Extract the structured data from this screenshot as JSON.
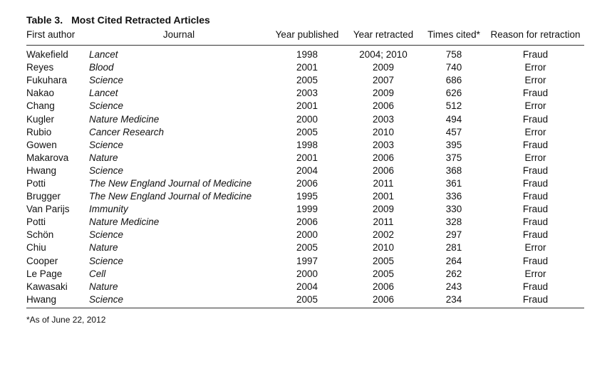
{
  "caption": {
    "label": "Table 3.",
    "title": "Most Cited Retracted Articles"
  },
  "headers": {
    "author": "First author",
    "journal": "Journal",
    "year_published": "Year published",
    "year_retracted": "Year retracted",
    "times_cited": "Times cited*",
    "reason": "Reason for retraction"
  },
  "rows": [
    {
      "author": "Wakefield",
      "journal": "Lancet",
      "year_published": "1998",
      "year_retracted": "2004; 2010",
      "times_cited": "758",
      "reason": "Fraud"
    },
    {
      "author": "Reyes",
      "journal": "Blood",
      "year_published": "2001",
      "year_retracted": "2009",
      "times_cited": "740",
      "reason": "Error"
    },
    {
      "author": "Fukuhara",
      "journal": "Science",
      "year_published": "2005",
      "year_retracted": "2007",
      "times_cited": "686",
      "reason": "Error"
    },
    {
      "author": "Nakao",
      "journal": "Lancet",
      "year_published": "2003",
      "year_retracted": "2009",
      "times_cited": "626",
      "reason": "Fraud"
    },
    {
      "author": "Chang",
      "journal": "Science",
      "year_published": "2001",
      "year_retracted": "2006",
      "times_cited": "512",
      "reason": "Error"
    },
    {
      "author": "Kugler",
      "journal": "Nature Medicine",
      "year_published": "2000",
      "year_retracted": "2003",
      "times_cited": "494",
      "reason": "Fraud"
    },
    {
      "author": "Rubio",
      "journal": "Cancer Research",
      "year_published": "2005",
      "year_retracted": "2010",
      "times_cited": "457",
      "reason": "Error"
    },
    {
      "author": "Gowen",
      "journal": "Science",
      "year_published": "1998",
      "year_retracted": "2003",
      "times_cited": "395",
      "reason": "Fraud"
    },
    {
      "author": "Makarova",
      "journal": "Nature",
      "year_published": "2001",
      "year_retracted": "2006",
      "times_cited": "375",
      "reason": "Error"
    },
    {
      "author": "Hwang",
      "journal": "Science",
      "year_published": "2004",
      "year_retracted": "2006",
      "times_cited": "368",
      "reason": "Fraud"
    },
    {
      "author": "Potti",
      "journal": "The New England Journal of Medicine",
      "year_published": "2006",
      "year_retracted": "2011",
      "times_cited": "361",
      "reason": "Fraud"
    },
    {
      "author": "Brugger",
      "journal": "The New England Journal of Medicine",
      "year_published": "1995",
      "year_retracted": "2001",
      "times_cited": "336",
      "reason": "Fraud"
    },
    {
      "author": "Van Parijs",
      "journal": "Immunity",
      "year_published": "1999",
      "year_retracted": "2009",
      "times_cited": "330",
      "reason": "Fraud"
    },
    {
      "author": "Potti",
      "journal": "Nature Medicine",
      "year_published": "2006",
      "year_retracted": "2011",
      "times_cited": "328",
      "reason": "Fraud"
    },
    {
      "author": "Schön",
      "journal": "Science",
      "year_published": "2000",
      "year_retracted": "2002",
      "times_cited": "297",
      "reason": "Fraud"
    },
    {
      "author": "Chiu",
      "journal": "Nature",
      "year_published": "2005",
      "year_retracted": "2010",
      "times_cited": "281",
      "reason": "Error"
    },
    {
      "author": "Cooper",
      "journal": "Science",
      "year_published": "1997",
      "year_retracted": "2005",
      "times_cited": "264",
      "reason": "Fraud"
    },
    {
      "author": "Le Page",
      "journal": "Cell",
      "year_published": "2000",
      "year_retracted": "2005",
      "times_cited": "262",
      "reason": "Error"
    },
    {
      "author": "Kawasaki",
      "journal": "Nature",
      "year_published": "2004",
      "year_retracted": "2006",
      "times_cited": "243",
      "reason": "Fraud"
    },
    {
      "author": "Hwang",
      "journal": "Science",
      "year_published": "2005",
      "year_retracted": "2006",
      "times_cited": "234",
      "reason": "Fraud"
    }
  ],
  "footnote": "*As of June 22, 2012"
}
